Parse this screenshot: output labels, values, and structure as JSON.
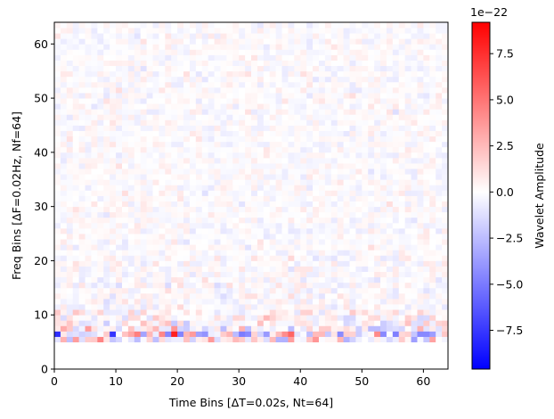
{
  "chart_data": {
    "type": "heatmap",
    "title": "",
    "xlabel": "Time Bins [ΔT=0.02s, Nt=64]",
    "ylabel": "Freq Bins [ΔF=0.02Hz, Nf=64]",
    "x_ticks": [
      "0",
      "10",
      "20",
      "30",
      "40",
      "50",
      "60"
    ],
    "y_ticks": [
      "0",
      "10",
      "20",
      "30",
      "40",
      "50",
      "60"
    ],
    "xlim": [
      0,
      64
    ],
    "ylim": [
      0,
      64
    ],
    "nt": 64,
    "nf": 64,
    "grid": false,
    "colormap": "bwr",
    "colorbar": {
      "label": "Wavelet Amplitude",
      "offset_text": "1e−22",
      "min": -9.6,
      "max": 9.2,
      "ticks": [
        "−7.5",
        "−5.0",
        "−2.5",
        "0.0",
        "2.5",
        "5.0",
        "7.5"
      ],
      "tick_values": [
        -7.5,
        -5.0,
        -2.5,
        0.0,
        2.5,
        5.0,
        7.5
      ]
    },
    "summary": "Amplitude near zero everywhere except a band of strong positive/negative values concentrated in frequency bins 5-8, with rows 0-4 essentially zero."
  }
}
